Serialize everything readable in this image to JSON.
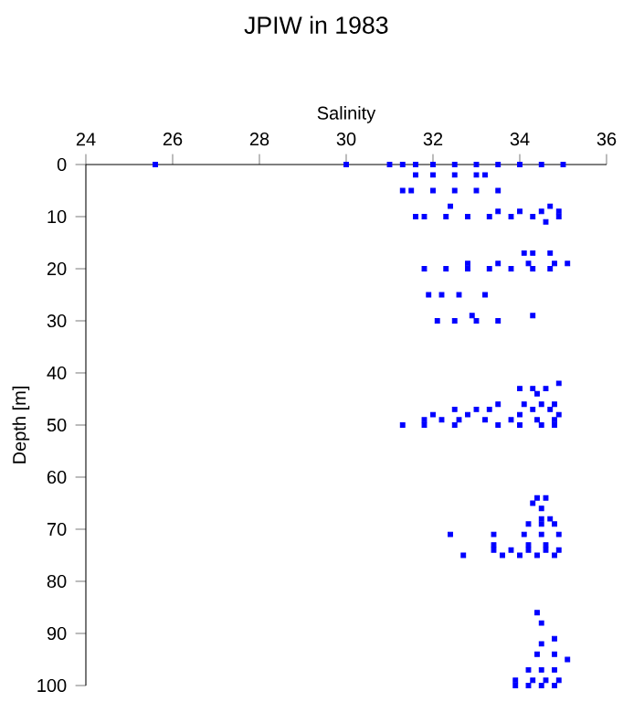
{
  "chart_data": {
    "type": "scatter",
    "title": "JPIW in 1983",
    "xlabel": "Salinity",
    "ylabel": "Depth [m]",
    "xlim": [
      24,
      36
    ],
    "xticks": [
      24,
      26,
      28,
      30,
      32,
      34,
      36
    ],
    "ylim": [
      100,
      0
    ],
    "yticks": [
      0,
      10,
      20,
      30,
      40,
      50,
      60,
      70,
      80,
      90,
      100
    ],
    "marker": "square",
    "series": [
      {
        "color": "#0000ff",
        "x": [
          25.6,
          30.0,
          31.0,
          31.3,
          31.6,
          32.0,
          32.5,
          33.0,
          33.5,
          34.0,
          34.5,
          35.0,
          31.6,
          32.0,
          32.5,
          33.0,
          33.2,
          31.3,
          31.5,
          32.0,
          32.5,
          33.0,
          33.5,
          32.4,
          34.7,
          33.5,
          34.0,
          34.5,
          34.9,
          31.6,
          31.8,
          32.3,
          32.8,
          33.3,
          33.8,
          34.3,
          34.9,
          34.6,
          34.1,
          34.3,
          34.7,
          32.8,
          33.5,
          34.2,
          34.8,
          35.1,
          31.8,
          32.3,
          32.8,
          33.3,
          33.8,
          34.3,
          34.7,
          31.9,
          32.2,
          32.6,
          33.2,
          32.9,
          34.3,
          32.1,
          32.5,
          33.0,
          33.5,
          34.9,
          34.0,
          34.3,
          34.6,
          34.4,
          33.5,
          34.1,
          34.5,
          34.8,
          32.5,
          33.0,
          33.3,
          34.3,
          34.7,
          32.0,
          32.8,
          34.0,
          34.9,
          31.8,
          32.2,
          32.6,
          33.2,
          33.8,
          34.4,
          34.8,
          31.3,
          31.8,
          32.5,
          33.5,
          34.0,
          34.5,
          34.8,
          34.4,
          34.6,
          34.3,
          34.5,
          34.5,
          34.7,
          34.2,
          34.5,
          34.8,
          32.4,
          33.4,
          34.1,
          34.5,
          34.9,
          33.4,
          34.2,
          34.6,
          33.4,
          33.8,
          34.2,
          34.6,
          34.9,
          32.7,
          33.6,
          34.0,
          34.4,
          34.8,
          34.4,
          34.5,
          34.8,
          34.5,
          34.4,
          34.8,
          35.1,
          34.2,
          34.5,
          34.8,
          33.9,
          34.3,
          34.6,
          34.9,
          33.9,
          34.2,
          34.5,
          34.8
        ],
        "values": [
          0,
          0,
          0,
          0,
          0,
          0,
          0,
          0,
          0,
          0,
          0,
          0,
          2,
          2,
          2,
          2,
          2,
          5,
          5,
          5,
          5,
          5,
          5,
          8,
          8,
          9,
          9,
          9,
          9,
          10,
          10,
          10,
          10,
          10,
          10,
          10,
          10,
          11,
          17,
          17,
          17,
          19,
          19,
          19,
          19,
          19,
          20,
          20,
          20,
          20,
          20,
          20,
          20,
          25,
          25,
          25,
          25,
          29,
          29,
          30,
          30,
          30,
          30,
          42,
          43,
          43,
          43,
          44,
          46,
          46,
          46,
          46,
          47,
          47,
          47,
          47,
          47,
          48,
          48,
          48,
          48,
          49,
          49,
          49,
          49,
          49,
          49,
          49,
          50,
          50,
          50,
          50,
          50,
          50,
          50,
          64,
          64,
          65,
          66,
          68,
          68,
          69,
          69,
          69,
          71,
          71,
          71,
          71,
          71,
          73,
          73,
          73,
          74,
          74,
          74,
          74,
          74,
          75,
          75,
          75,
          75,
          75,
          86,
          88,
          91,
          92,
          94,
          94,
          95,
          97,
          97,
          97,
          99,
          99,
          99,
          99,
          100,
          100,
          100,
          100
        ]
      }
    ]
  }
}
